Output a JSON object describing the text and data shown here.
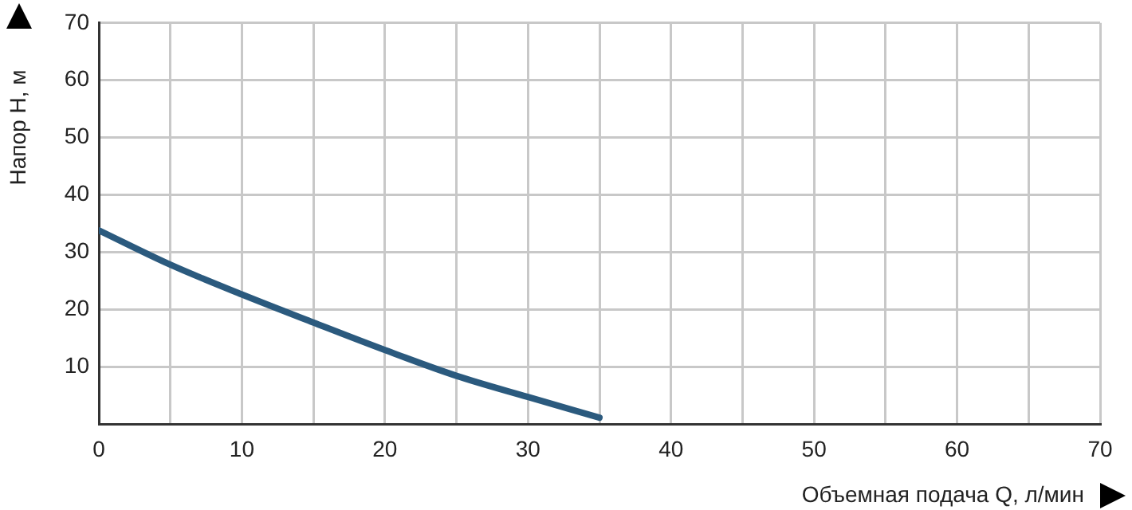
{
  "chart_data": {
    "type": "line",
    "xlabel": "Объемная подача Q, л/мин",
    "ylabel": "Напор H, м",
    "x": [
      0,
      5,
      10,
      15,
      20,
      25,
      30,
      35
    ],
    "series": [
      {
        "color": "#2b5a7e",
        "values": [
          33.8,
          27.8,
          22.6,
          17.7,
          12.9,
          8.4,
          4.7,
          1.1
        ]
      }
    ],
    "xlim": [
      0,
      70
    ],
    "xticks": [
      0,
      {
        "value": 5,
        "label": null
      },
      10,
      {
        "value": 15,
        "label": null
      },
      20,
      {
        "value": 25,
        "label": null
      },
      30,
      {
        "value": 35,
        "label": null
      },
      40,
      {
        "value": 45,
        "label": null
      },
      50,
      {
        "value": 55,
        "label": null
      },
      60,
      {
        "value": 65,
        "label": null
      },
      70
    ],
    "ylim": [
      0,
      70
    ],
    "yticks": [
      {
        "value": 0,
        "label": null
      },
      10,
      20,
      30,
      40,
      50,
      60,
      70
    ],
    "grid": true,
    "legend": false,
    "marker": "none",
    "line_style": "solid"
  }
}
